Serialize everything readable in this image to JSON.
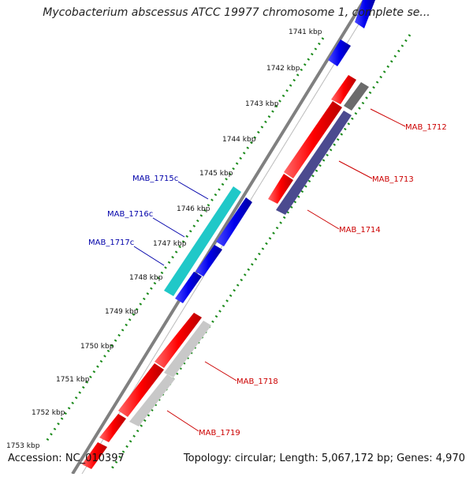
{
  "title": "Mycobacterium abscessus ATCC 19977 chromosome 1, complete se...",
  "accession_text": "Accession: NC_010397",
  "summary_text": "Topology: circular; Length: 5,067,172 bp; Genes: 4,970",
  "colors": {
    "forward_gene": "#ff0000",
    "reverse_gene": "#0000ff",
    "cds_cyan": "#20c8c8",
    "cds_slate": "#4b4a8f",
    "cds_dark_gray": "#6b6b6b",
    "cds_light_gray": "#c8c8c8",
    "axis_line": "#808080",
    "tick_dots": "#1a8a1a",
    "label_forward": "#cc0000",
    "label_reverse": "#0000aa"
  },
  "chart_data": {
    "type": "genome_map",
    "ticks": [
      "1741 kbp",
      "1742 kbp",
      "1743 kbp",
      "1744 kbp",
      "1745 kbp",
      "1746 kbp",
      "1747 kbp",
      "1748 kbp",
      "1749 kbp",
      "1750 kbp",
      "1751 kbp",
      "1752 kbp",
      "1753 kbp"
    ],
    "gene_labels_forward": [
      "MAB_1712",
      "MAB_1713",
      "MAB_1714",
      "MAB_1718",
      "MAB_1719"
    ],
    "gene_labels_reverse": [
      "MAB_1715c",
      "MAB_1716c",
      "MAB_1717c"
    ]
  }
}
